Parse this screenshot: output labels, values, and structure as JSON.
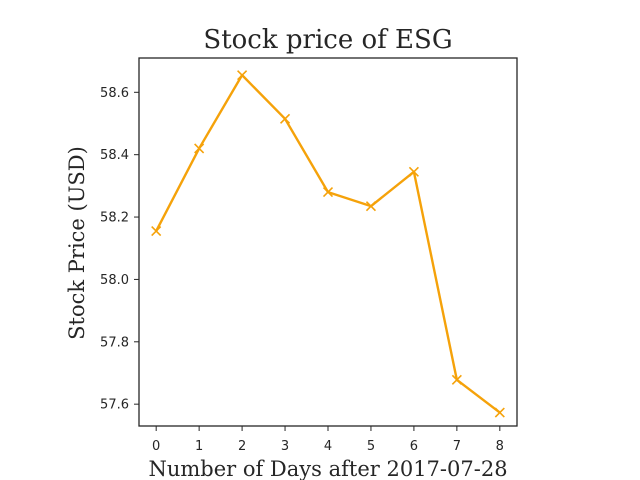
{
  "chart_data": {
    "type": "line",
    "title": "Stock price of ESG",
    "xlabel": "Number of Days after 2017-07-28",
    "ylabel": "Stock Price (USD)",
    "x": [
      0,
      1,
      2,
      3,
      4,
      5,
      6,
      7,
      8
    ],
    "xticks": [
      "0",
      "1",
      "2",
      "3",
      "4",
      "5",
      "6",
      "7",
      "8"
    ],
    "xlim": [
      -0.4,
      8.4
    ],
    "yticks": [
      57.6,
      57.8,
      58.0,
      58.2,
      58.4,
      58.6
    ],
    "ylim": [
      57.53,
      58.71
    ],
    "grid": false,
    "legend": "none",
    "series": [
      {
        "values": [
          58.155,
          58.42,
          58.655,
          58.515,
          58.28,
          58.235,
          58.345,
          57.678,
          57.573
        ],
        "color": "#f5a20a",
        "marker": "x"
      }
    ]
  }
}
